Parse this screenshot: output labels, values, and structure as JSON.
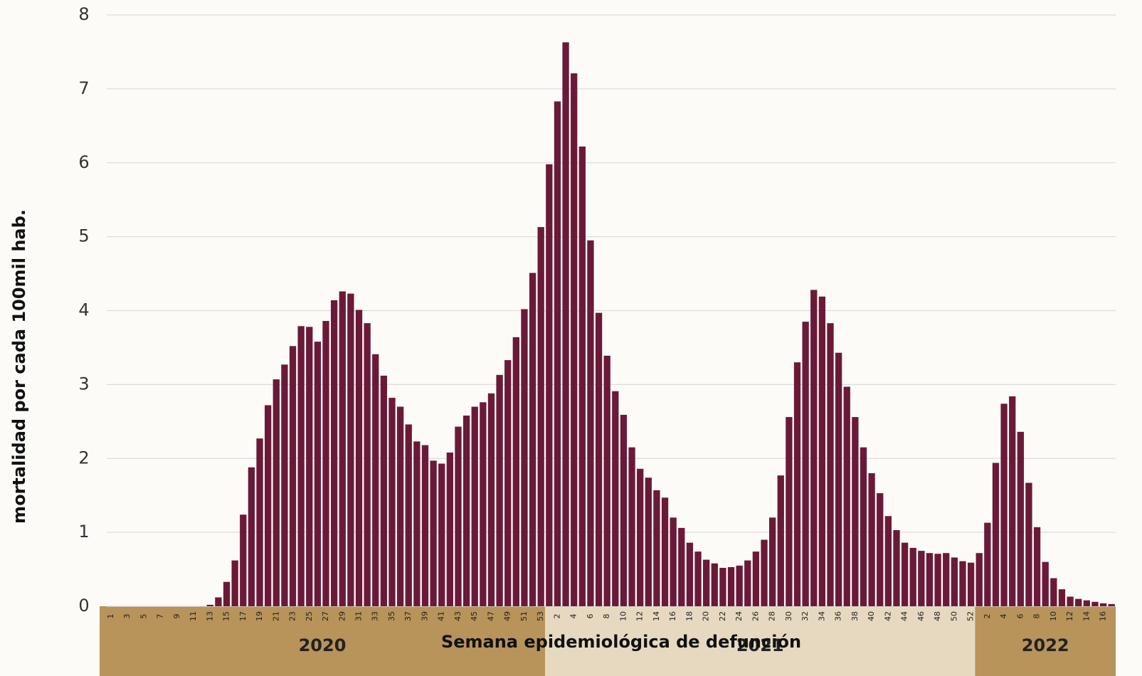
{
  "chart_data": {
    "type": "bar",
    "x_label": "Semana epidemiológica de defunción",
    "y_label": "mortalidad por cada 100mil hab.",
    "x_groups": [
      "2020",
      "2021",
      "2022"
    ],
    "categories": [
      "1",
      null,
      "3",
      null,
      "5",
      null,
      "7",
      null,
      "9",
      null,
      "11",
      null,
      "13",
      null,
      "15",
      null,
      "17",
      null,
      "19",
      null,
      "21",
      null,
      "23",
      null,
      "25",
      null,
      "27",
      null,
      "29",
      null,
      "31",
      null,
      "33",
      null,
      "35",
      null,
      "37",
      null,
      "39",
      null,
      "41",
      null,
      "43",
      null,
      "45",
      null,
      "47",
      null,
      "49",
      null,
      "51",
      null,
      "53",
      null,
      "2",
      null,
      "4",
      null,
      "6",
      null,
      "8",
      null,
      "10",
      null,
      "12",
      null,
      "14",
      null,
      "16",
      null,
      "18",
      null,
      "20",
      null,
      "22",
      null,
      "24",
      null,
      "26",
      null,
      "28",
      null,
      "30",
      null,
      "32",
      null,
      "34",
      null,
      "36",
      null,
      "38",
      null,
      "40",
      null,
      "42",
      null,
      "44",
      null,
      "46",
      null,
      "48",
      null,
      "50",
      null,
      "52",
      null,
      "2",
      null,
      "4",
      null,
      "6",
      null,
      "8",
      null,
      "10",
      null,
      "12",
      null,
      "14",
      null,
      "16",
      null
    ],
    "values": [
      0,
      0,
      0,
      0,
      0,
      0,
      0,
      0,
      0,
      0,
      0,
      0,
      0.02,
      0.12,
      0.33,
      0.62,
      1.24,
      1.88,
      2.27,
      2.72,
      3.07,
      3.27,
      3.52,
      3.79,
      3.78,
      3.58,
      3.86,
      4.14,
      4.26,
      4.23,
      4.01,
      3.83,
      3.41,
      3.12,
      2.82,
      2.7,
      2.46,
      2.23,
      2.18,
      1.97,
      1.93,
      2.08,
      2.43,
      2.58,
      2.7,
      2.76,
      2.88,
      3.13,
      3.33,
      3.64,
      4.02,
      4.51,
      5.13,
      5.98,
      6.83,
      7.63,
      7.21,
      6.22,
      4.95,
      3.97,
      3.39,
      2.91,
      2.59,
      2.15,
      1.86,
      1.74,
      1.57,
      1.47,
      1.2,
      1.06,
      0.86,
      0.74,
      0.63,
      0.58,
      0.52,
      0.53,
      0.55,
      0.62,
      0.74,
      0.9,
      1.2,
      1.77,
      2.56,
      3.3,
      3.85,
      4.28,
      4.19,
      3.83,
      3.43,
      2.97,
      2.56,
      2.15,
      1.8,
      1.53,
      1.22,
      1.03,
      0.86,
      0.79,
      0.75,
      0.72,
      0.71,
      0.72,
      0.66,
      0.61,
      0.59,
      0.72,
      1.13,
      1.94,
      2.74,
      2.84,
      2.36,
      1.67,
      1.07,
      0.6,
      0.38,
      0.23,
      0.13,
      0.1,
      0.08,
      0.06,
      0.04,
      0.03
    ],
    "color": "#6a1a38",
    "ylim": [
      0,
      8
    ],
    "yticks": [
      0,
      1,
      2,
      3,
      4,
      5,
      6,
      7,
      8
    ],
    "grid": true
  }
}
